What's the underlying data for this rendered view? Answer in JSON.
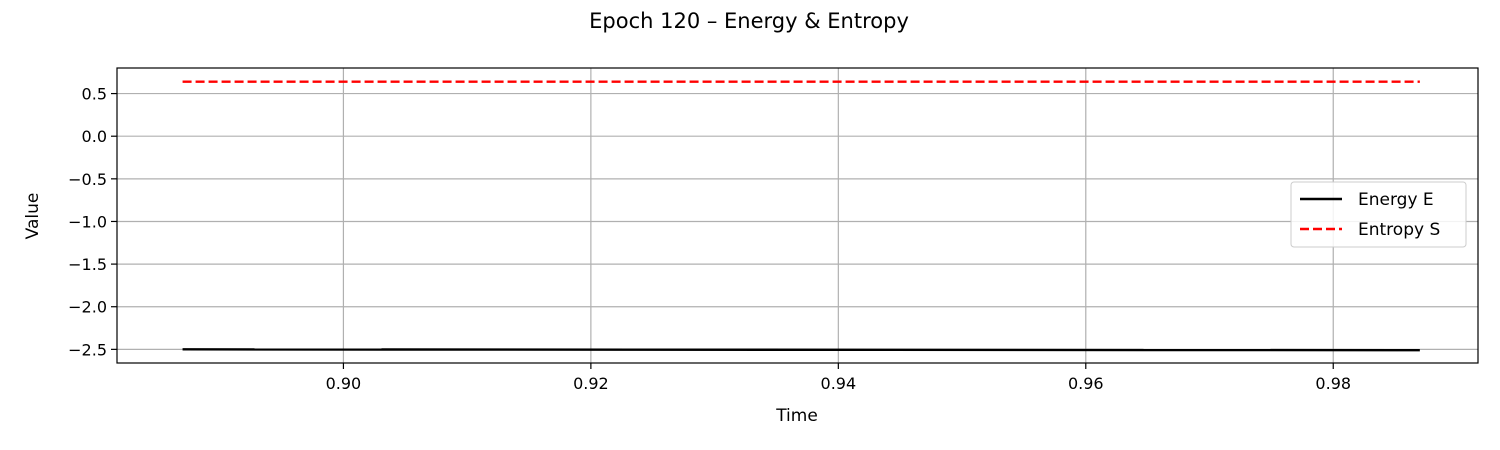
{
  "chart_data": {
    "type": "line",
    "title": "Epoch 120 – Energy & Entropy",
    "xlabel": "Time",
    "ylabel": "Value",
    "xlim": [
      0.8817,
      0.9917
    ],
    "ylim": [
      -2.66,
      0.8
    ],
    "x_ticks": [
      0.9,
      0.92,
      0.94,
      0.96,
      0.98
    ],
    "x_tick_labels": [
      "0.90",
      "0.92",
      "0.94",
      "0.96",
      "0.98"
    ],
    "y_ticks": [
      0.5,
      0.0,
      -0.5,
      -1.0,
      -1.5,
      -2.0,
      -2.5
    ],
    "y_tick_labels": [
      "0.5",
      "0.0",
      "−0.5",
      "−1.0",
      "−1.5",
      "−2.0",
      "−2.5"
    ],
    "grid": true,
    "legend_position": "center-right",
    "series": [
      {
        "name": "Energy E",
        "color": "#000000",
        "style": "solid",
        "x": [
          0.887,
          0.987
        ],
        "y": [
          -2.5,
          -2.51
        ]
      },
      {
        "name": "Entropy S",
        "color": "#ff0000",
        "style": "dashed",
        "x": [
          0.887,
          0.987
        ],
        "y": [
          0.64,
          0.64
        ]
      }
    ]
  }
}
